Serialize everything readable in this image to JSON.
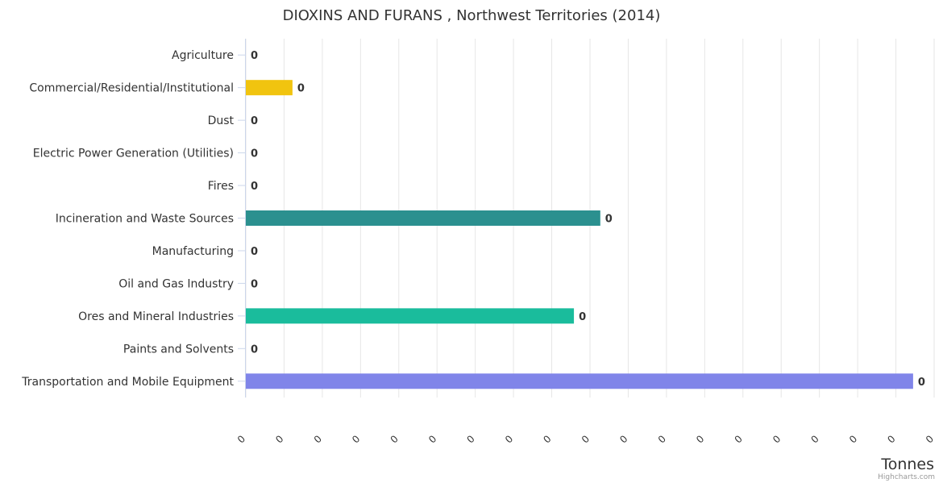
{
  "chart_data": {
    "type": "bar",
    "orientation": "horizontal",
    "title": "DIOXINS AND FURANS , Northwest Territories (2014)",
    "xlabel": "",
    "ylabel": "Tonnes",
    "categories": [
      "Agriculture",
      "Commercial/Residential/Institutional",
      "Dust",
      "Electric Power Generation (Utilities)",
      "Fires",
      "Incineration and Waste Sources",
      "Manufacturing",
      "Oil and Gas Industry",
      "Ores and Mineral Industries",
      "Paints and Solvents",
      "Transportation and Mobile Equipment"
    ],
    "values": [
      0,
      1.22e-05,
      0,
      0,
      0,
      9.27e-05,
      0,
      0,
      8.58e-05,
      0,
      0.0001745
    ],
    "data_labels": [
      "0",
      "0",
      "0",
      "0",
      "0",
      "0",
      "0",
      "0",
      "0",
      "0",
      "0"
    ],
    "bar_colors": [
      "#7cb5ec",
      "#f1c40f",
      "#7cb5ec",
      "#7cb5ec",
      "#7cb5ec",
      "#2b908f",
      "#7cb5ec",
      "#7cb5ec",
      "#1abc9c",
      "#7cb5ec",
      "#8085e9"
    ],
    "ylim": [
      0,
      0.00018
    ],
    "tick_labels": [
      "0",
      "0",
      "0",
      "0",
      "0",
      "0",
      "0",
      "0",
      "0",
      "0",
      "0",
      "0",
      "0",
      "0",
      "0",
      "0",
      "0",
      "0",
      "0"
    ],
    "grid": true,
    "legend": "none"
  },
  "credits": "Highcharts.com",
  "colors": {
    "grid": "#e6e6e6",
    "axis_line": "#ccd6eb",
    "text": "#333333"
  }
}
